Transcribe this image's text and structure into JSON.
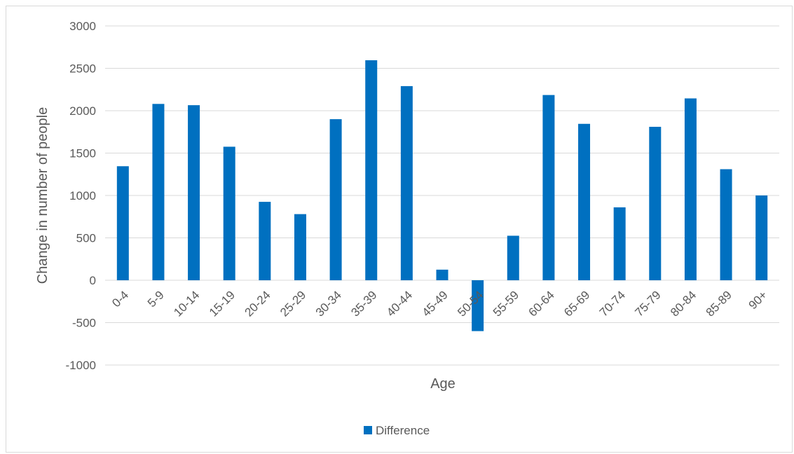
{
  "chart_data": {
    "type": "bar",
    "title": "",
    "xlabel": "Age",
    "ylabel": "Change in number of people",
    "categories": [
      "0-4",
      "5-9",
      "10-14",
      "15-19",
      "20-24",
      "25-29",
      "30-34",
      "35-39",
      "40-44",
      "45-49",
      "50-54",
      "55-59",
      "60-64",
      "65-69",
      "70-74",
      "75-79",
      "80-84",
      "85-89",
      "90+"
    ],
    "series": [
      {
        "name": "Difference",
        "color": "#0070c0",
        "values": [
          1345,
          2080,
          2065,
          1575,
          925,
          780,
          1900,
          2595,
          2290,
          125,
          -600,
          525,
          2185,
          1845,
          860,
          1810,
          2145,
          1310,
          1000
        ]
      }
    ],
    "ylim": [
      -1000,
      3000
    ],
    "yticks": [
      -1000,
      -500,
      0,
      500,
      1000,
      1500,
      2000,
      2500,
      3000
    ],
    "grid": true,
    "legend_position": "bottom"
  }
}
